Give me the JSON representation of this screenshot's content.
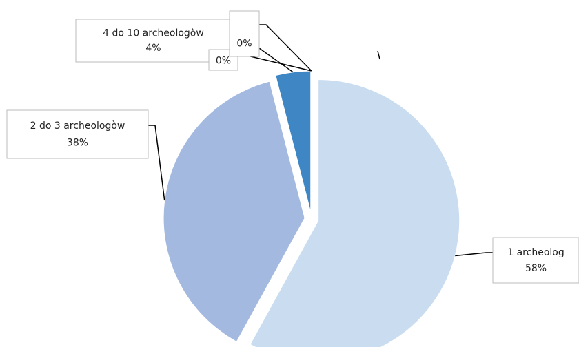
{
  "chart_data": {
    "type": "pie",
    "categories": [
      "1 archeolog",
      "2 do 3 archeologòw",
      "4 do 10 archeologòw",
      null,
      null
    ],
    "values": [
      58,
      38,
      4,
      0,
      0
    ],
    "value_labels": [
      "58%",
      "38%",
      "4%",
      "0%",
      "0%"
    ],
    "colors": [
      "#c9dcf0",
      "#a3b9e0",
      "#3f86c4",
      "#2a6aa8",
      "#6f9ed6"
    ],
    "start_angle": 0,
    "direction": "clockwise",
    "exploded": true
  }
}
